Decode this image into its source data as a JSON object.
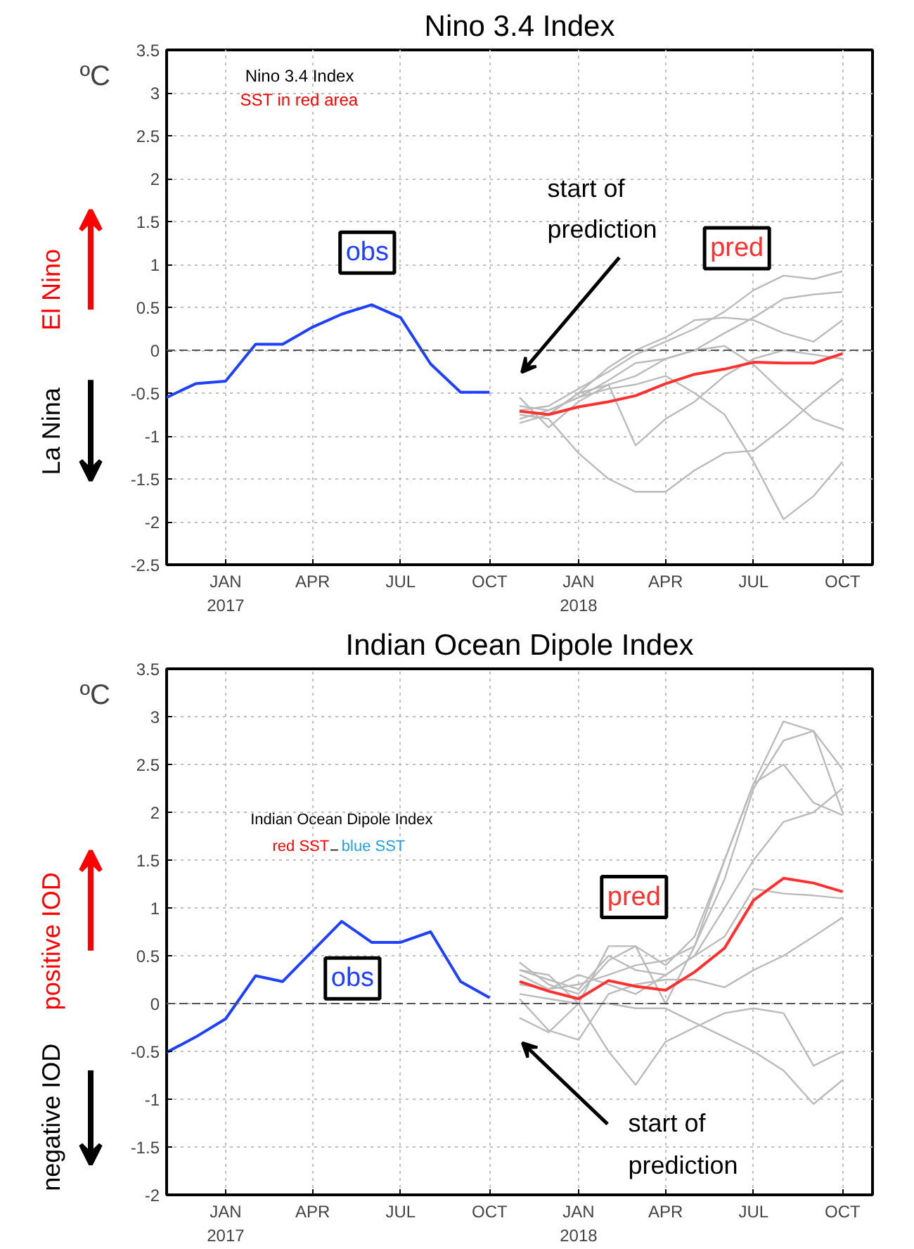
{
  "chart_data": [
    {
      "type": "line",
      "title": "Nino 3.4 Index",
      "ylabel": "ºC",
      "xlim": [
        "2016-11",
        "2018-11"
      ],
      "xticks": [
        {
          "value": "2017-01",
          "label": "JAN\n2017"
        },
        {
          "value": "2017-04",
          "label": "APR"
        },
        {
          "value": "2017-07",
          "label": "JUL"
        },
        {
          "value": "2017-10",
          "label": "OCT"
        },
        {
          "value": "2018-01",
          "label": "JAN\n2018"
        },
        {
          "value": "2018-04",
          "label": "APR"
        },
        {
          "value": "2018-07",
          "label": "JUL"
        },
        {
          "value": "2018-10",
          "label": "OCT"
        }
      ],
      "ylim": [
        -2.5,
        3.5
      ],
      "yticks": [
        -2.5,
        -2,
        -1.5,
        -1,
        -0.5,
        0,
        0.5,
        1,
        1.5,
        2,
        2.5,
        3,
        3.5
      ],
      "grid": true,
      "line_style": "solid",
      "ref_lines": [
        {
          "axis": "y",
          "value": 0,
          "color": "#555555",
          "line_style": "dashed"
        }
      ],
      "annotations": [
        "Nino 3.4 Index",
        "SST in red area",
        "start of\nprediction",
        "El Nino",
        "La Nina"
      ],
      "series": [
        {
          "color": "#bbbbbb",
          "x": [
            "2017-11",
            "2017-12",
            "2018-01",
            "2018-02",
            "2018-03",
            "2018-04",
            "2018-05",
            "2018-06",
            "2018-07",
            "2018-08",
            "2018-09",
            "2018-10"
          ],
          "values": [
            -0.72,
            -0.75,
            -0.5,
            -0.2,
            0.0,
            0.15,
            0.35,
            0.38,
            0.35,
            0.2,
            0.1,
            0.35
          ]
        },
        {
          "color": "#bbbbbb",
          "x": [
            "2017-11",
            "2017-12",
            "2018-01",
            "2018-02",
            "2018-03",
            "2018-04",
            "2018-05",
            "2018-06",
            "2018-07",
            "2018-08",
            "2018-09",
            "2018-10"
          ],
          "values": [
            -0.7,
            -0.65,
            -0.45,
            -0.25,
            -0.05,
            0.1,
            0.25,
            0.45,
            0.7,
            0.87,
            0.83,
            0.92
          ]
        },
        {
          "color": "#bbbbbb",
          "x": [
            "2017-11",
            "2017-12",
            "2018-01",
            "2018-02",
            "2018-03",
            "2018-04",
            "2018-05",
            "2018-06",
            "2018-07",
            "2018-08",
            "2018-09",
            "2018-10"
          ],
          "values": [
            -0.65,
            -0.7,
            -0.55,
            -0.35,
            -0.15,
            -0.1,
            0.0,
            0.2,
            0.38,
            0.6,
            0.65,
            0.68
          ]
        },
        {
          "color": "#bbbbbb",
          "x": [
            "2017-11",
            "2017-12",
            "2018-01",
            "2018-02",
            "2018-03",
            "2018-04",
            "2018-05",
            "2018-06",
            "2018-07",
            "2018-08",
            "2018-09",
            "2018-10"
          ],
          "values": [
            -0.75,
            -0.8,
            -1.2,
            -1.5,
            -1.65,
            -1.65,
            -1.4,
            -1.2,
            -1.17,
            -0.9,
            -0.6,
            -0.33
          ]
        },
        {
          "color": "#bbbbbb",
          "x": [
            "2017-11",
            "2017-12",
            "2018-01",
            "2018-02",
            "2018-03",
            "2018-04",
            "2018-05",
            "2018-06",
            "2018-07",
            "2018-08",
            "2018-09",
            "2018-10"
          ],
          "values": [
            -0.8,
            -0.7,
            -0.55,
            -0.45,
            -0.4,
            -0.3,
            -0.5,
            -0.75,
            -1.3,
            -1.97,
            -1.7,
            -1.3
          ]
        },
        {
          "color": "#bbbbbb",
          "x": [
            "2017-11",
            "2017-12",
            "2018-01",
            "2018-02",
            "2018-03",
            "2018-04",
            "2018-05",
            "2018-06",
            "2018-07",
            "2018-08",
            "2018-09",
            "2018-10"
          ],
          "values": [
            -0.55,
            -0.9,
            -0.6,
            -0.4,
            -0.3,
            -0.1,
            0.0,
            0.05,
            -0.17,
            -0.5,
            -0.8,
            -0.92
          ]
        },
        {
          "color": "#bbbbbb",
          "x": [
            "2017-11",
            "2017-12",
            "2018-01",
            "2018-02",
            "2018-03",
            "2018-04",
            "2018-05",
            "2018-06",
            "2018-07",
            "2018-08",
            "2018-09",
            "2018-10"
          ],
          "values": [
            -0.85,
            -0.75,
            -0.5,
            -0.4,
            -1.11,
            -0.8,
            -0.6,
            -0.3,
            -0.1,
            0.0,
            -0.05,
            -0.1
          ]
        },
        {
          "name": "obs",
          "color": "#2040ff",
          "x": [
            "2016-11",
            "2016-12",
            "2017-01",
            "2017-02",
            "2017-03",
            "2017-04",
            "2017-05",
            "2017-06",
            "2017-07",
            "2017-08",
            "2017-09",
            "2017-10"
          ],
          "values": [
            -0.55,
            -0.39,
            -0.36,
            0.07,
            0.07,
            0.27,
            0.42,
            0.53,
            0.38,
            -0.16,
            -0.49,
            -0.49
          ]
        },
        {
          "name": "pred",
          "color": "#ff3030",
          "x": [
            "2017-11",
            "2017-12",
            "2018-01",
            "2018-02",
            "2018-03",
            "2018-04",
            "2018-05",
            "2018-06",
            "2018-07",
            "2018-08",
            "2018-09",
            "2018-10"
          ],
          "values": [
            -0.71,
            -0.75,
            -0.66,
            -0.6,
            -0.53,
            -0.39,
            -0.28,
            -0.22,
            -0.14,
            -0.15,
            -0.15,
            -0.04
          ]
        }
      ]
    },
    {
      "type": "line",
      "title": "Indian Ocean Dipole Index",
      "ylabel": "ºC",
      "xlim": [
        "2016-11",
        "2018-11"
      ],
      "xticks": [
        {
          "value": "2017-01",
          "label": "JAN\n2017"
        },
        {
          "value": "2017-04",
          "label": "APR"
        },
        {
          "value": "2017-07",
          "label": "JUL"
        },
        {
          "value": "2017-10",
          "label": "OCT"
        },
        {
          "value": "2018-01",
          "label": "JAN\n2018"
        },
        {
          "value": "2018-04",
          "label": "APR"
        },
        {
          "value": "2018-07",
          "label": "JUL"
        },
        {
          "value": "2018-10",
          "label": "OCT"
        }
      ],
      "ylim": [
        -2,
        3.5
      ],
      "yticks": [
        -2,
        -1.5,
        -1,
        -0.5,
        0,
        0.5,
        1,
        1.5,
        2,
        2.5,
        3,
        3.5
      ],
      "grid": true,
      "line_style": "solid",
      "ref_lines": [
        {
          "axis": "y",
          "value": 0,
          "color": "#555555",
          "line_style": "dashed"
        }
      ],
      "annotations": [
        "Indian Ocean Dipole Index",
        "red SST",
        "−",
        "blue SST",
        "start of\nprediction",
        "positive IOD",
        "negative IOD"
      ],
      "series": [
        {
          "color": "#bbbbbb",
          "x": [
            "2017-11",
            "2017-12",
            "2018-01",
            "2018-02",
            "2018-03",
            "2018-04",
            "2018-05",
            "2018-06",
            "2018-07",
            "2018-08",
            "2018-09",
            "2018-10"
          ],
          "values": [
            0.43,
            0.2,
            0.1,
            0.45,
            0.6,
            0.4,
            0.7,
            1.5,
            2.3,
            2.95,
            2.85,
            2.45
          ]
        },
        {
          "color": "#bbbbbb",
          "x": [
            "2017-11",
            "2017-12",
            "2018-01",
            "2018-02",
            "2018-03",
            "2018-04",
            "2018-05",
            "2018-06",
            "2018-07",
            "2018-08",
            "2018-09",
            "2018-10"
          ],
          "values": [
            0.35,
            0.3,
            0.0,
            0.6,
            0.6,
            0.0,
            0.6,
            1.5,
            2.3,
            2.5,
            2.1,
            1.97
          ]
        },
        {
          "color": "#bbbbbb",
          "x": [
            "2017-11",
            "2017-12",
            "2018-01",
            "2018-02",
            "2018-03",
            "2018-04",
            "2018-05",
            "2018-06",
            "2018-07",
            "2018-08",
            "2018-09",
            "2018-10"
          ],
          "values": [
            0.3,
            0.15,
            0.2,
            0.3,
            0.4,
            0.45,
            0.6,
            1.3,
            2.25,
            2.75,
            2.85,
            2.0
          ]
        },
        {
          "color": "#bbbbbb",
          "x": [
            "2017-11",
            "2017-12",
            "2018-01",
            "2018-02",
            "2018-03",
            "2018-04",
            "2018-05",
            "2018-06",
            "2018-07",
            "2018-08",
            "2018-09",
            "2018-10"
          ],
          "values": [
            0.2,
            0.15,
            0.3,
            0.2,
            0.1,
            0.3,
            0.5,
            1.0,
            1.5,
            1.9,
            2.0,
            2.25
          ]
        },
        {
          "color": "#bbbbbb",
          "x": [
            "2017-11",
            "2017-12",
            "2018-01",
            "2018-02",
            "2018-03",
            "2018-04",
            "2018-05",
            "2018-06",
            "2018-07",
            "2018-08",
            "2018-09",
            "2018-10"
          ],
          "values": [
            0.05,
            -0.28,
            -0.38,
            0.1,
            0.2,
            0.25,
            0.25,
            0.17,
            0.35,
            0.5,
            0.7,
            0.9
          ]
        },
        {
          "color": "#bbbbbb",
          "x": [
            "2017-11",
            "2017-12",
            "2018-01",
            "2018-02",
            "2018-03",
            "2018-04",
            "2018-05",
            "2018-06",
            "2018-07",
            "2018-08",
            "2018-09",
            "2018-10"
          ],
          "values": [
            -0.15,
            -0.3,
            0.0,
            -0.5,
            -0.85,
            -0.4,
            -0.25,
            -0.1,
            -0.05,
            -0.1,
            -0.65,
            -0.5
          ]
        },
        {
          "color": "#bbbbbb",
          "x": [
            "2017-11",
            "2017-12",
            "2018-01",
            "2018-02",
            "2018-03",
            "2018-04",
            "2018-05",
            "2018-06",
            "2018-07",
            "2018-08",
            "2018-09",
            "2018-10"
          ],
          "values": [
            0.1,
            0.05,
            0.0,
            0.0,
            -0.05,
            -0.05,
            -0.2,
            -0.35,
            -0.5,
            -0.7,
            -1.05,
            -0.8
          ]
        },
        {
          "color": "#bbbbbb",
          "x": [
            "2017-11",
            "2017-12",
            "2018-01",
            "2018-02",
            "2018-03",
            "2018-04",
            "2018-05",
            "2018-06",
            "2018-07",
            "2018-08",
            "2018-09",
            "2018-10"
          ],
          "values": [
            0.35,
            0.25,
            0.15,
            0.5,
            0.35,
            0.3,
            0.5,
            0.7,
            1.2,
            1.15,
            1.13,
            1.1
          ]
        },
        {
          "name": "obs",
          "color": "#2040ff",
          "x": [
            "2016-11",
            "2016-12",
            "2017-01",
            "2017-02",
            "2017-03",
            "2017-04",
            "2017-05",
            "2017-06",
            "2017-07",
            "2017-08",
            "2017-09",
            "2017-10"
          ],
          "values": [
            -0.51,
            -0.35,
            -0.16,
            0.29,
            0.23,
            0.55,
            0.86,
            0.64,
            0.64,
            0.75,
            0.23,
            0.06
          ]
        },
        {
          "name": "pred",
          "color": "#ff3030",
          "x": [
            "2017-11",
            "2017-12",
            "2018-01",
            "2018-02",
            "2018-03",
            "2018-04",
            "2018-05",
            "2018-06",
            "2018-07",
            "2018-08",
            "2018-09",
            "2018-10"
          ],
          "values": [
            0.23,
            0.13,
            0.05,
            0.24,
            0.18,
            0.14,
            0.33,
            0.58,
            1.08,
            1.31,
            1.26,
            1.17
          ]
        }
      ]
    }
  ]
}
